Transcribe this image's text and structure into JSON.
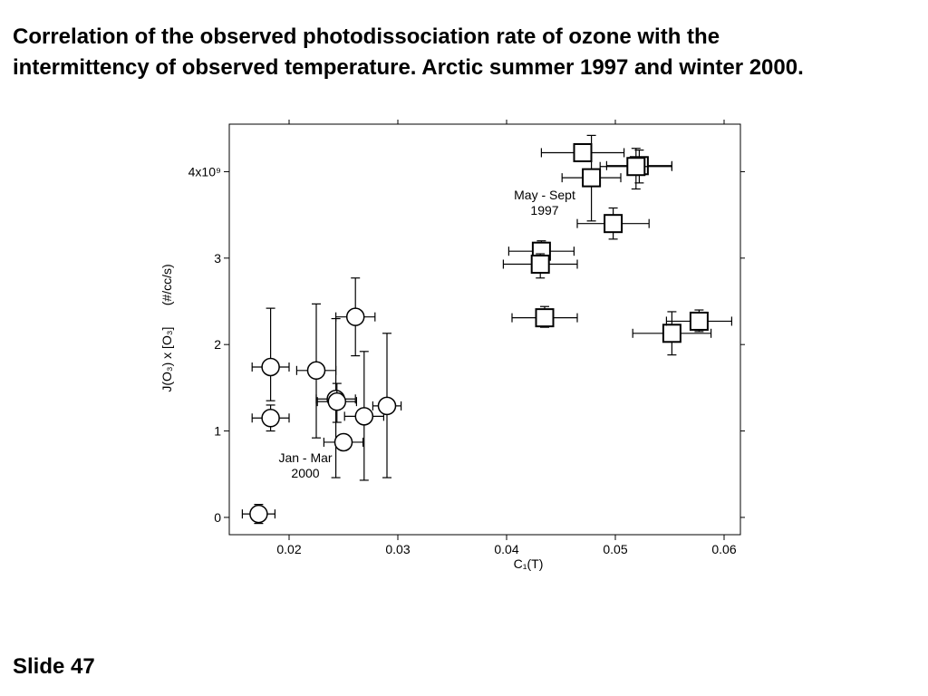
{
  "slide": {
    "title": "Correlation of the observed photodissociation rate of ozone with the intermittency of observed temperature. Arctic summer 1997 and winter 2000.",
    "number_label": "Slide 47"
  },
  "chart_data": {
    "type": "scatter",
    "title": "",
    "xlabel": "C₁(T)",
    "ylabel": "J(O₃) x [O₃]      (#/cc/s)",
    "y_exponent_label": "x10⁹",
    "xlim": [
      0.0145,
      0.0615
    ],
    "ylim": [
      -0.2,
      4.55
    ],
    "xticks": [
      0.02,
      0.03,
      0.04,
      0.05,
      0.06
    ],
    "xtick_labels": [
      "0.02",
      "0.03",
      "0.04",
      "0.05",
      "0.06"
    ],
    "yticks": [
      0,
      1,
      2,
      3,
      4
    ],
    "ytick_labels": [
      "0",
      "1",
      "2",
      "3",
      "4x10⁹"
    ],
    "grid": false,
    "series": [
      {
        "name": "Jan - Mar 2000",
        "marker": "circle",
        "points": [
          {
            "x": 0.0172,
            "y": 0.04,
            "xerr": 0.0015,
            "ylo": -0.07,
            "yhi": 0.15
          },
          {
            "x": 0.0183,
            "y": 1.74,
            "xerr": 0.0017,
            "ylo": 1.35,
            "yhi": 2.42
          },
          {
            "x": 0.0183,
            "y": 1.15,
            "xerr": 0.0017,
            "ylo": 1.0,
            "yhi": 1.3
          },
          {
            "x": 0.0225,
            "y": 1.7,
            "xerr": 0.0018,
            "ylo": 0.92,
            "yhi": 2.47
          },
          {
            "x": 0.0243,
            "y": 1.37,
            "xerr": 0.0018,
            "ylo": 0.46,
            "yhi": 2.3
          },
          {
            "x": 0.0244,
            "y": 1.34,
            "xerr": 0.0018,
            "ylo": 1.1,
            "yhi": 1.55
          },
          {
            "x": 0.025,
            "y": 0.87,
            "xerr": 0.0018,
            "ylo": 0.87,
            "yhi": 0.87
          },
          {
            "x": 0.0261,
            "y": 2.32,
            "xerr": 0.0018,
            "ylo": 1.87,
            "yhi": 2.77
          },
          {
            "x": 0.0269,
            "y": 1.17,
            "xerr": 0.0018,
            "ylo": 0.43,
            "yhi": 1.92
          },
          {
            "x": 0.029,
            "y": 1.29,
            "xerr": 0.0013,
            "ylo": 0.46,
            "yhi": 2.13
          }
        ]
      },
      {
        "name": "May - Sept 1997",
        "marker": "square",
        "points": [
          {
            "x": 0.0435,
            "y": 2.31,
            "xerr": 0.003,
            "ylo": 2.2,
            "yhi": 2.44
          },
          {
            "x": 0.0432,
            "y": 3.08,
            "xerr": 0.003,
            "ylo": 2.95,
            "yhi": 3.2
          },
          {
            "x": 0.0431,
            "y": 2.93,
            "xerr": 0.0034,
            "ylo": 2.77,
            "yhi": 3.05
          },
          {
            "x": 0.047,
            "y": 4.22,
            "xerr": 0.0038,
            "ylo": 4.22,
            "yhi": 4.22
          },
          {
            "x": 0.0478,
            "y": 3.93,
            "xerr": 0.0027,
            "ylo": 3.43,
            "yhi": 4.42
          },
          {
            "x": 0.0498,
            "y": 3.4,
            "xerr": 0.0033,
            "ylo": 3.22,
            "yhi": 3.58
          },
          {
            "x": 0.0522,
            "y": 4.07,
            "xerr": 0.003,
            "ylo": 3.87,
            "yhi": 4.25
          },
          {
            "x": 0.0519,
            "y": 4.06,
            "xerr": 0.0033,
            "ylo": 3.8,
            "yhi": 4.27
          },
          {
            "x": 0.0552,
            "y": 2.13,
            "xerr": 0.0036,
            "ylo": 1.88,
            "yhi": 2.38
          },
          {
            "x": 0.0577,
            "y": 2.27,
            "xerr": 0.003,
            "ylo": 2.15,
            "yhi": 2.4
          }
        ]
      }
    ],
    "annotations": [
      {
        "lines": [
          "May - Sept",
          "1997"
        ],
        "x": 0.0435,
        "y": 3.68
      },
      {
        "lines": [
          "Jan - Mar",
          "2000"
        ],
        "x": 0.0215,
        "y": 0.64
      }
    ]
  }
}
